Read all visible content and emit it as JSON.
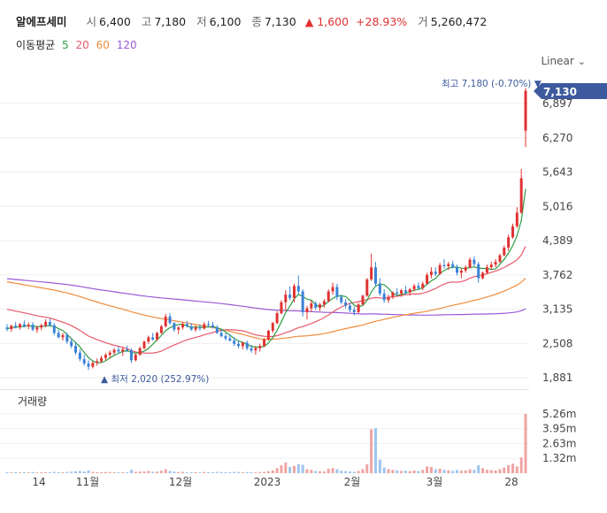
{
  "header": {
    "stock_name": "알에프세미",
    "open_label": "시",
    "open_value": "6,400",
    "high_label": "고",
    "high_value": "7,180",
    "low_label": "저",
    "low_value": "6,100",
    "close_label": "종",
    "close_value": "7,130",
    "change_value": "▲ 1,600",
    "change_pct": "+28.93%",
    "volume_label": "거",
    "volume_value": "5,260,472"
  },
  "moving_average": {
    "label": "이동평균",
    "periods": [
      {
        "text": "5",
        "color": "#2f9e44"
      },
      {
        "text": "20",
        "color": "#e8596b"
      },
      {
        "text": "60",
        "color": "#f08c3c"
      },
      {
        "text": "120",
        "color": "#9b59d6"
      }
    ]
  },
  "scale_mode": "Linear",
  "volume_title": "거래량",
  "chart_data": {
    "type": "candlestick",
    "price_ticks": [
      "6,897",
      "6,270",
      "5,643",
      "5,016",
      "4,389",
      "3,762",
      "3,135",
      "2,508",
      "1,881"
    ],
    "volume_ticks": [
      "5.26m",
      "3.95m",
      "2.63m",
      "1.32m"
    ],
    "x_ticks": [
      "14",
      "11월",
      "12월",
      "2023",
      "2월",
      "3월",
      "28"
    ],
    "last_price": "7,130",
    "high_annotation": "최고 7,180 (-0.70%) ▼",
    "low_annotation": "▲ 최저 2,020 (252.97%)",
    "ylim": [
      1881,
      7180
    ],
    "up_color": "#e03131",
    "down_color": "#3b82d6",
    "ohlc": [
      [
        2800,
        2860,
        2730,
        2770
      ],
      [
        2770,
        2850,
        2720,
        2830
      ],
      [
        2830,
        2900,
        2780,
        2800
      ],
      [
        2800,
        2880,
        2760,
        2860
      ],
      [
        2860,
        2930,
        2800,
        2820
      ],
      [
        2820,
        2890,
        2770,
        2850
      ],
      [
        2850,
        2900,
        2730,
        2760
      ],
      [
        2760,
        2830,
        2700,
        2800
      ],
      [
        2800,
        2870,
        2750,
        2840
      ],
      [
        2840,
        2950,
        2800,
        2900
      ],
      [
        2900,
        2960,
        2820,
        2840
      ],
      [
        2840,
        2880,
        2660,
        2700
      ],
      [
        2700,
        2760,
        2600,
        2620
      ],
      [
        2620,
        2700,
        2560,
        2660
      ],
      [
        2660,
        2700,
        2500,
        2540
      ],
      [
        2540,
        2600,
        2420,
        2460
      ],
      [
        2460,
        2520,
        2300,
        2340
      ],
      [
        2340,
        2400,
        2180,
        2220
      ],
      [
        2220,
        2300,
        2100,
        2140
      ],
      [
        2140,
        2200,
        2020,
        2080
      ],
      [
        2080,
        2180,
        2050,
        2150
      ],
      [
        2150,
        2230,
        2100,
        2180
      ],
      [
        2180,
        2280,
        2150,
        2240
      ],
      [
        2240,
        2330,
        2200,
        2300
      ],
      [
        2300,
        2380,
        2240,
        2340
      ],
      [
        2340,
        2420,
        2300,
        2390
      ],
      [
        2390,
        2450,
        2320,
        2360
      ],
      [
        2360,
        2440,
        2280,
        2400
      ],
      [
        2400,
        2470,
        2350,
        2380
      ],
      [
        2380,
        2420,
        2150,
        2200
      ],
      [
        2200,
        2320,
        2180,
        2300
      ],
      [
        2300,
        2450,
        2280,
        2420
      ],
      [
        2420,
        2560,
        2400,
        2540
      ],
      [
        2540,
        2650,
        2500,
        2620
      ],
      [
        2620,
        2700,
        2560,
        2580
      ],
      [
        2580,
        2720,
        2550,
        2700
      ],
      [
        2700,
        2850,
        2680,
        2820
      ],
      [
        2820,
        3050,
        2800,
        3000
      ],
      [
        3000,
        3060,
        2850,
        2880
      ],
      [
        2880,
        2900,
        2720,
        2760
      ],
      [
        2760,
        2820,
        2680,
        2800
      ],
      [
        2800,
        2900,
        2760,
        2860
      ],
      [
        2860,
        2920,
        2800,
        2820
      ],
      [
        2820,
        2880,
        2740,
        2760
      ],
      [
        2760,
        2840,
        2720,
        2800
      ],
      [
        2800,
        2860,
        2740,
        2780
      ],
      [
        2780,
        2900,
        2760,
        2860
      ],
      [
        2860,
        2920,
        2800,
        2840
      ],
      [
        2840,
        2900,
        2780,
        2800
      ],
      [
        2800,
        2840,
        2680,
        2700
      ],
      [
        2700,
        2760,
        2620,
        2640
      ],
      [
        2640,
        2700,
        2560,
        2600
      ],
      [
        2600,
        2680,
        2540,
        2560
      ],
      [
        2560,
        2620,
        2460,
        2500
      ],
      [
        2500,
        2560,
        2420,
        2460
      ],
      [
        2460,
        2540,
        2400,
        2520
      ],
      [
        2520,
        2560,
        2380,
        2420
      ],
      [
        2420,
        2480,
        2340,
        2380
      ],
      [
        2380,
        2460,
        2300,
        2420
      ],
      [
        2420,
        2500,
        2360,
        2460
      ],
      [
        2460,
        2600,
        2440,
        2580
      ],
      [
        2580,
        2760,
        2560,
        2740
      ],
      [
        2740,
        2900,
        2700,
        2880
      ],
      [
        2880,
        3100,
        2860,
        3060
      ],
      [
        3060,
        3300,
        3040,
        3260
      ],
      [
        3260,
        3480,
        3100,
        3400
      ],
      [
        3400,
        3550,
        3300,
        3340
      ],
      [
        3340,
        3600,
        3260,
        3560
      ],
      [
        3560,
        3750,
        3400,
        3460
      ],
      [
        3460,
        3500,
        3000,
        3080
      ],
      [
        3080,
        3200,
        2950,
        3150
      ],
      [
        3150,
        3300,
        3080,
        3240
      ],
      [
        3240,
        3280,
        3120,
        3160
      ],
      [
        3160,
        3250,
        3100,
        3220
      ],
      [
        3220,
        3320,
        3160,
        3280
      ],
      [
        3280,
        3500,
        3260,
        3460
      ],
      [
        3460,
        3620,
        3400,
        3540
      ],
      [
        3540,
        3600,
        3300,
        3360
      ],
      [
        3360,
        3400,
        3220,
        3260
      ],
      [
        3260,
        3320,
        3150,
        3200
      ],
      [
        3200,
        3250,
        3080,
        3120
      ],
      [
        3120,
        3180,
        3020,
        3080
      ],
      [
        3080,
        3250,
        3060,
        3220
      ],
      [
        3220,
        3400,
        3200,
        3380
      ],
      [
        3380,
        3700,
        3360,
        3680
      ],
      [
        3680,
        4150,
        3650,
        3900
      ],
      [
        3900,
        4000,
        3550,
        3600
      ],
      [
        3600,
        3700,
        3380,
        3420
      ],
      [
        3420,
        3500,
        3250,
        3300
      ],
      [
        3300,
        3400,
        3250,
        3360
      ],
      [
        3360,
        3460,
        3320,
        3440
      ],
      [
        3440,
        3520,
        3380,
        3420
      ],
      [
        3420,
        3500,
        3360,
        3480
      ],
      [
        3480,
        3560,
        3400,
        3440
      ],
      [
        3440,
        3520,
        3380,
        3500
      ],
      [
        3500,
        3600,
        3460,
        3560
      ],
      [
        3560,
        3620,
        3480,
        3520
      ],
      [
        3520,
        3640,
        3480,
        3600
      ],
      [
        3600,
        3800,
        3580,
        3760
      ],
      [
        3760,
        3900,
        3700,
        3820
      ],
      [
        3820,
        3900,
        3740,
        3780
      ],
      [
        3780,
        3980,
        3760,
        3940
      ],
      [
        3940,
        4050,
        3880,
        3920
      ],
      [
        3920,
        4000,
        3850,
        3960
      ],
      [
        3960,
        4020,
        3880,
        3900
      ],
      [
        3900,
        3950,
        3750,
        3800
      ],
      [
        3800,
        3880,
        3700,
        3840
      ],
      [
        3840,
        3940,
        3800,
        3900
      ],
      [
        3900,
        4080,
        3880,
        4040
      ],
      [
        4040,
        4100,
        3920,
        3960
      ],
      [
        3960,
        4000,
        3620,
        3700
      ],
      [
        3700,
        3820,
        3680,
        3800
      ],
      [
        3800,
        3950,
        3780,
        3900
      ],
      [
        3900,
        4000,
        3860,
        3950
      ],
      [
        3950,
        4050,
        3900,
        4000
      ],
      [
        4000,
        4150,
        3980,
        4120
      ],
      [
        4120,
        4300,
        4100,
        4260
      ],
      [
        4260,
        4500,
        4200,
        4450
      ],
      [
        4450,
        4700,
        4420,
        4650
      ],
      [
        4650,
        5000,
        4620,
        4900
      ],
      [
        4900,
        5700,
        4880,
        5530
      ],
      [
        6400,
        7180,
        6100,
        7130
      ]
    ],
    "volume": [
      0.09,
      0.08,
      0.1,
      0.07,
      0.09,
      0.08,
      0.11,
      0.07,
      0.08,
      0.1,
      0.09,
      0.12,
      0.1,
      0.09,
      0.11,
      0.14,
      0.18,
      0.2,
      0.15,
      0.24,
      0.12,
      0.1,
      0.09,
      0.11,
      0.1,
      0.08,
      0.09,
      0.1,
      0.08,
      0.3,
      0.12,
      0.15,
      0.16,
      0.2,
      0.12,
      0.14,
      0.22,
      0.35,
      0.2,
      0.14,
      0.1,
      0.12,
      0.09,
      0.08,
      0.1,
      0.09,
      0.11,
      0.08,
      0.09,
      0.12,
      0.1,
      0.09,
      0.08,
      0.12,
      0.1,
      0.08,
      0.11,
      0.09,
      0.08,
      0.1,
      0.12,
      0.18,
      0.25,
      0.45,
      0.7,
      0.95,
      0.55,
      0.65,
      0.8,
      0.75,
      0.35,
      0.3,
      0.2,
      0.18,
      0.15,
      0.4,
      0.45,
      0.35,
      0.22,
      0.18,
      0.15,
      0.13,
      0.2,
      0.35,
      0.8,
      3.9,
      4.0,
      1.2,
      0.5,
      0.35,
      0.3,
      0.25,
      0.2,
      0.22,
      0.18,
      0.25,
      0.2,
      0.3,
      0.6,
      0.55,
      0.35,
      0.4,
      0.3,
      0.25,
      0.2,
      0.28,
      0.22,
      0.25,
      0.35,
      0.3,
      0.7,
      0.45,
      0.3,
      0.28,
      0.25,
      0.35,
      0.5,
      0.7,
      0.85,
      0.6,
      1.4,
      5.26
    ]
  }
}
